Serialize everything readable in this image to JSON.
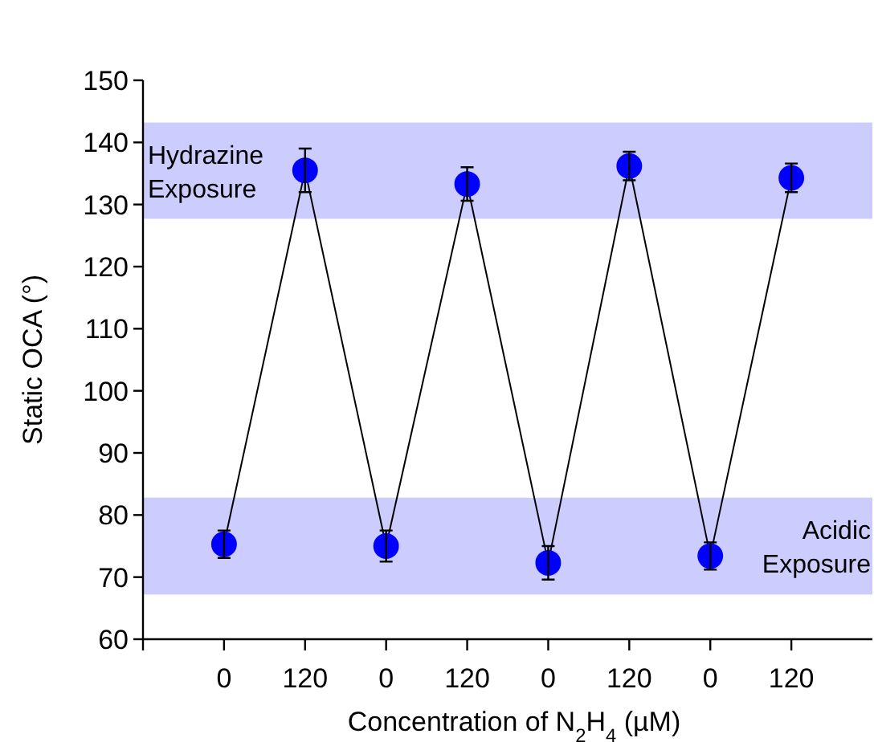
{
  "chart_data": {
    "type": "line",
    "xlabel": "Concentration of N$_{2}$H$_{4}$ (µM)",
    "ylabel": "Static OCA (°)",
    "categories": [
      "0",
      "120",
      "0",
      "120",
      "0",
      "120",
      "0",
      "120"
    ],
    "series": [
      {
        "color": "#0000ff",
        "values": [
          75.3,
          135.5,
          75.0,
          133.3,
          72.3,
          136.2,
          73.4,
          134.3
        ],
        "errors": [
          2.2,
          3.5,
          2.5,
          2.7,
          2.7,
          2.3,
          2.2,
          2.3
        ]
      }
    ],
    "ylim": [
      60,
      150
    ],
    "yticks": [
      60,
      70,
      80,
      90,
      100,
      110,
      120,
      130,
      140,
      150
    ],
    "bands": [
      {
        "axis": "y",
        "from": 127.7,
        "to": 143.2,
        "label": "Hydrazine\nExposure",
        "color": "#ccccff"
      },
      {
        "axis": "y",
        "from": 67.2,
        "to": 82.8,
        "label": "Acidic\nExposure",
        "color": "#ccccff"
      }
    ],
    "marker": "circle",
    "grid": false
  }
}
